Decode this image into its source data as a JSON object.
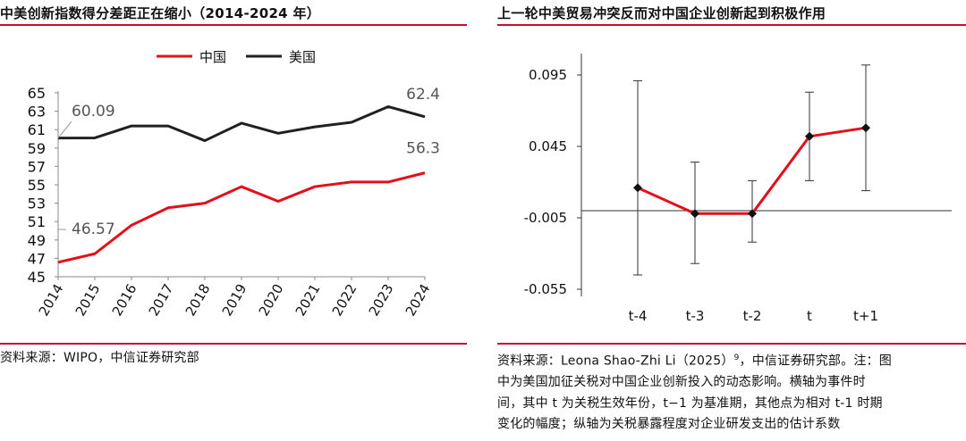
{
  "left": {
    "title": "中美创新指数得分差距正在缩小（2014-2024 年）",
    "source": "资料来源：WIPO，中信证券研究部"
  },
  "right": {
    "title": "上一轮中美贸易冲突反而对中国企业创新起到积极作用",
    "source_lines": [
      "资料来源：Leona Shao-Zhi Li（2025）",
      "9",
      "，中信证券研究部。注：图",
      "中为美国加征关税对中国企业创新投入的动态影响。横轴为事件时",
      "间，其中 t 为关税生效年份，t−1 为基准期，其他点为相对 t-1 时期",
      "变化的幅度；纵轴为关税暴露程度对企业研发支出的估计系数"
    ]
  },
  "colors": {
    "china": "#e3101b",
    "us": "#231f20",
    "rule": "#c8102e"
  },
  "chart_data": [
    {
      "type": "line",
      "title": "中美创新指数得分差距正在缩小（2014-2024 年）",
      "x": [
        "2014",
        "2015",
        "2016",
        "2017",
        "2018",
        "2019",
        "2020",
        "2021",
        "2022",
        "2023",
        "2024"
      ],
      "series": [
        {
          "name": "中国",
          "color": "#e3101b",
          "values": [
            46.57,
            47.5,
            50.6,
            52.5,
            53.0,
            54.8,
            53.2,
            54.8,
            55.3,
            55.3,
            56.3
          ]
        },
        {
          "name": "美国",
          "color": "#231f20",
          "values": [
            60.09,
            60.1,
            61.4,
            61.4,
            59.8,
            61.7,
            60.6,
            61.3,
            61.8,
            63.5,
            62.4
          ]
        }
      ],
      "ylim": [
        45,
        65
      ],
      "yticks": [
        "45",
        "47",
        "49",
        "51",
        "53",
        "55",
        "57",
        "59",
        "61",
        "63",
        "65"
      ],
      "annotations": [
        {
          "text": "60.09",
          "series": "美国",
          "x": "2014"
        },
        {
          "text": "46.57",
          "series": "中国",
          "x": "2014"
        },
        {
          "text": "62.4",
          "series": "美国",
          "x": "2024"
        },
        {
          "text": "56.3",
          "series": "中国",
          "x": "2024"
        }
      ],
      "legend": "top",
      "grid": false
    },
    {
      "type": "line",
      "subtype": "errorbar",
      "title": "上一轮中美贸易冲突反而对中国企业创新起到积极作用",
      "x": [
        "t-4",
        "t-3",
        "t-2",
        "t",
        "t+1"
      ],
      "values": [
        0.016,
        -0.002,
        -0.002,
        0.052,
        0.058
      ],
      "lower": [
        -0.045,
        -0.037,
        -0.022,
        0.021,
        0.014
      ],
      "upper": [
        0.091,
        0.034,
        0.021,
        0.083,
        0.102
      ],
      "ylim": [
        -0.06,
        0.11
      ],
      "yticks": [
        "-0.055",
        "-0.005",
        "0.045",
        "0.095"
      ],
      "grid": false
    }
  ]
}
